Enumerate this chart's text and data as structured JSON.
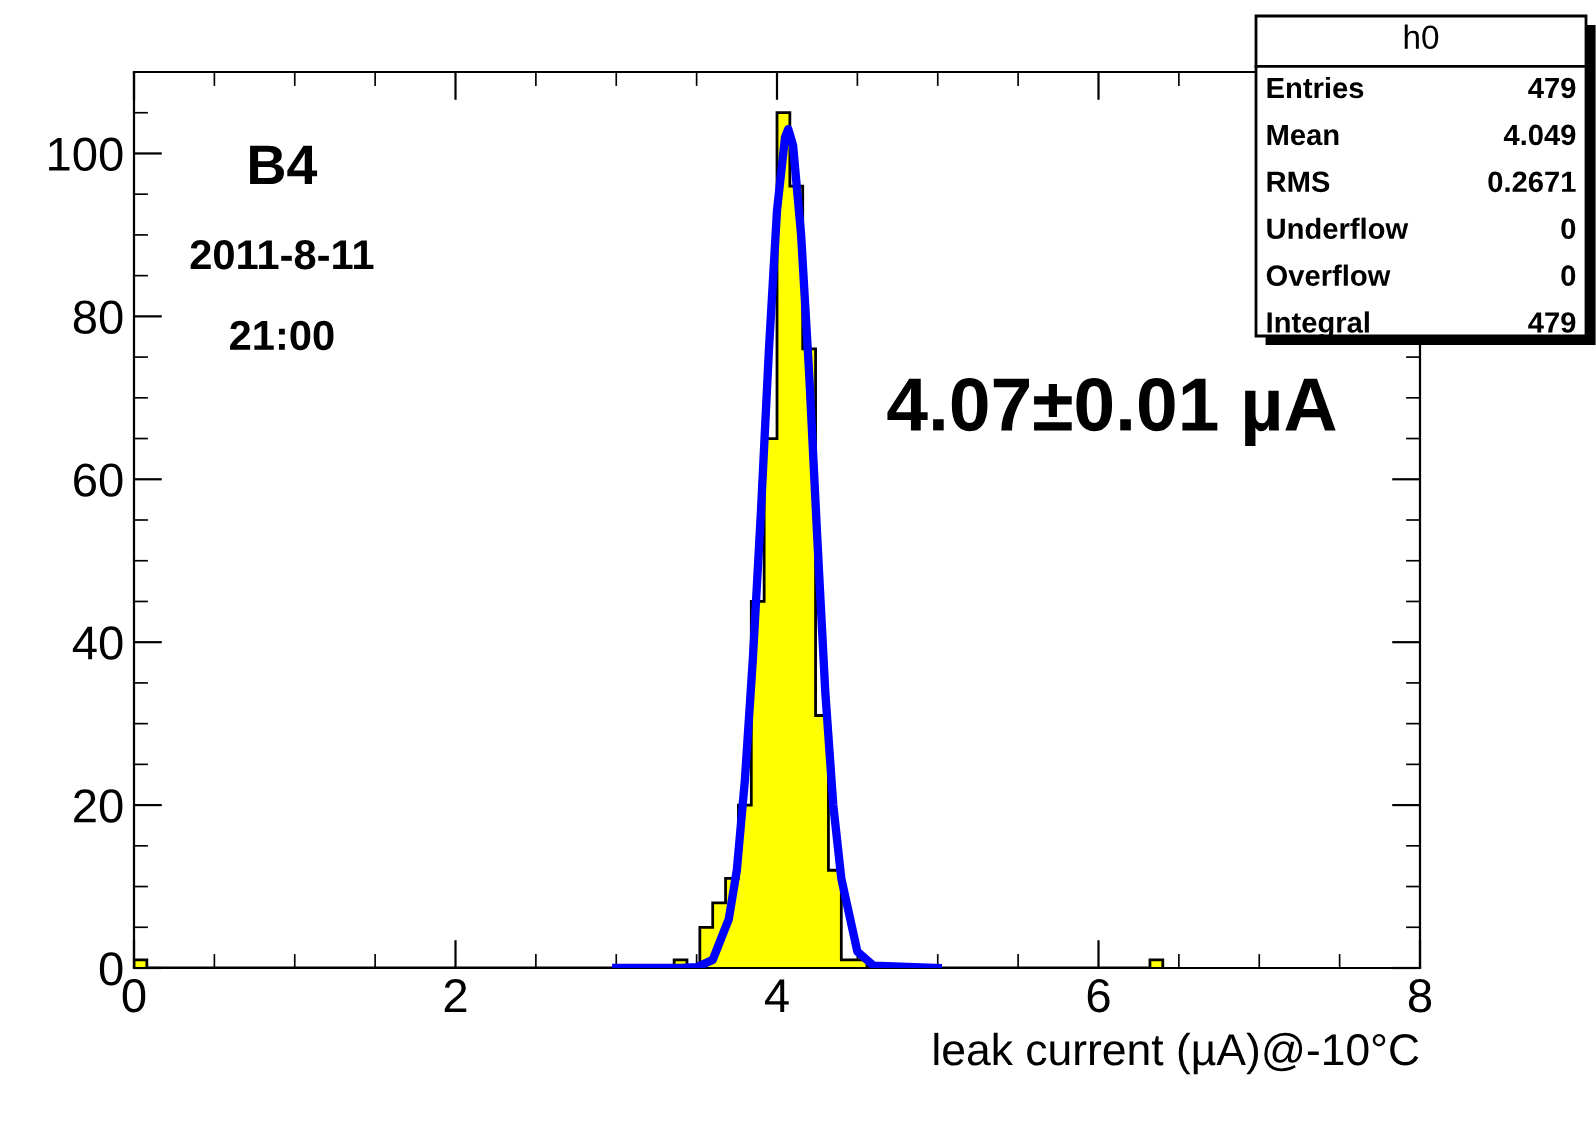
{
  "chart_data": {
    "type": "histogram",
    "xlabel": "leak current (µA)@-10°C",
    "series": [
      {
        "type": "histogram",
        "color": "#ffff00",
        "bins": [
          0,
          0.08,
          0.16,
          0.24,
          0.32,
          0.4,
          0.48,
          0.56,
          0.64,
          0.72,
          0.8,
          0.88,
          0.96,
          1.04,
          1.12,
          1.2,
          1.28,
          1.36,
          1.44,
          1.52,
          1.6,
          1.68,
          1.76,
          1.84,
          1.92,
          2.0,
          2.08,
          2.16,
          2.24,
          2.32,
          2.4,
          2.48,
          2.56,
          2.64,
          2.72,
          2.8,
          2.88,
          2.96,
          3.04,
          3.12,
          3.2,
          3.28,
          3.36,
          3.44,
          3.52,
          3.6,
          3.68,
          3.76,
          3.84,
          3.92,
          4.0,
          4.08,
          4.16,
          4.24,
          4.32,
          4.4,
          4.48,
          4.56,
          4.64,
          4.72,
          4.8,
          4.88,
          4.96,
          5.04,
          5.12,
          5.2,
          5.28,
          5.36,
          5.44,
          5.52,
          5.6,
          5.68,
          5.76,
          5.84,
          5.92,
          6.0,
          6.08,
          6.16,
          6.24,
          6.32,
          6.4
        ],
        "values": [
          1,
          0,
          0,
          0,
          0,
          0,
          0,
          0,
          0,
          0,
          0,
          0,
          0,
          0,
          0,
          0,
          0,
          0,
          0,
          0,
          0,
          0,
          0,
          0,
          0,
          0,
          0,
          0,
          0,
          0,
          0,
          0,
          0,
          0,
          0,
          0,
          0,
          0,
          0,
          0,
          0,
          0,
          1,
          0,
          5,
          8,
          11,
          20,
          45,
          65,
          105,
          96,
          76,
          31,
          12,
          1,
          1,
          0,
          0,
          0,
          0,
          0,
          0,
          0,
          0,
          0,
          0,
          0,
          0,
          0,
          0,
          0,
          0,
          0,
          0,
          0,
          0,
          0,
          0,
          1
        ]
      },
      {
        "type": "line",
        "color": "#0000ff",
        "x": [
          3.0,
          3.4,
          3.5,
          3.6,
          3.7,
          3.75,
          3.8,
          3.85,
          3.9,
          3.95,
          4.0,
          4.05,
          4.07,
          4.1,
          4.15,
          4.2,
          4.25,
          4.3,
          4.35,
          4.4,
          4.5,
          4.6,
          5.0
        ],
        "values": [
          0,
          0,
          0.1,
          1,
          6,
          12,
          23,
          38,
          56,
          76,
          93,
          102,
          103,
          101,
          90,
          73,
          53,
          34,
          20,
          11,
          2,
          0.3,
          0
        ]
      }
    ],
    "xlim": [
      0,
      8
    ],
    "xticks": [
      0,
      2,
      4,
      6,
      8
    ],
    "ylim": [
      0,
      110
    ],
    "yticks": [
      0,
      20,
      40,
      60,
      80,
      100
    ],
    "grid": false,
    "annotations": [
      "B4",
      "2011-8-11",
      "21:00",
      "4.07±0.01 µA",
      "h0",
      "Entries",
      "479",
      "Mean",
      "4.049",
      "RMS",
      "0.2671",
      "Underflow",
      "0",
      "Overflow",
      "0",
      "Integral",
      "479"
    ]
  }
}
